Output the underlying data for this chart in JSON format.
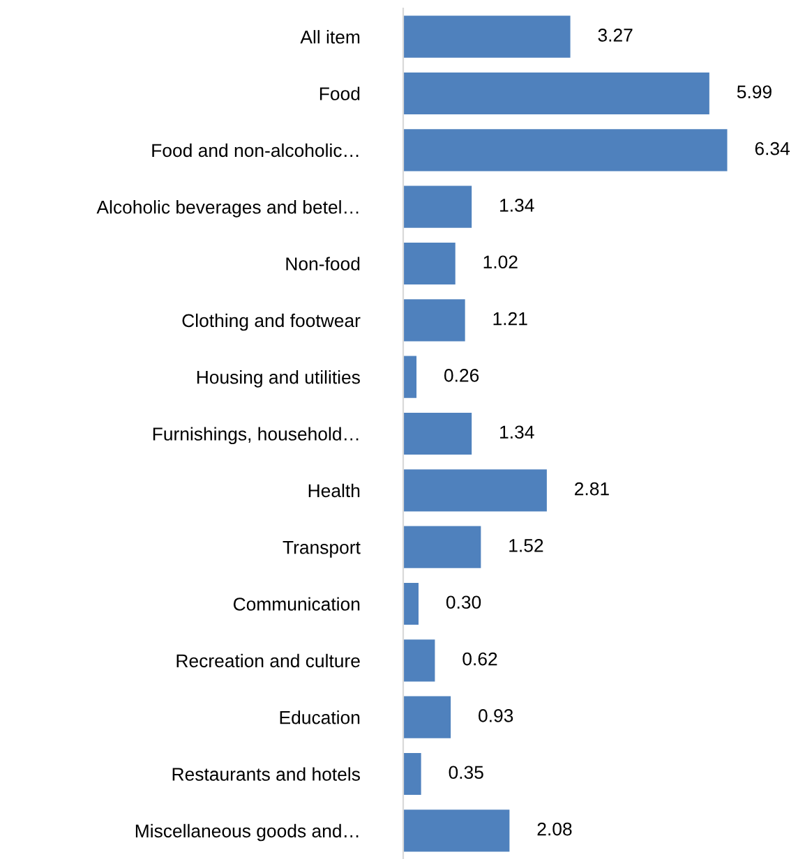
{
  "chart_data": {
    "type": "bar",
    "orientation": "horizontal",
    "categories": [
      "All item",
      "Food",
      "Food and non-alcoholic…",
      "Alcoholic beverages and betel…",
      "Non-food",
      "Clothing and footwear",
      "Housing and utilities",
      "Furnishings, household…",
      "Health",
      "Transport",
      "Communication",
      "Recreation and culture",
      "Education",
      "Restaurants and hotels",
      "Miscellaneous goods and…"
    ],
    "values": [
      3.27,
      5.99,
      6.34,
      1.34,
      1.02,
      1.21,
      0.26,
      1.34,
      2.81,
      1.52,
      0.3,
      0.62,
      0.93,
      0.35,
      2.08
    ],
    "value_labels": [
      "3.27",
      "5.99",
      "6.34",
      "1.34",
      "1.02",
      "1.21",
      "0.26",
      "1.34",
      "2.81",
      "1.52",
      "0.30",
      "0.62",
      "0.93",
      "0.35",
      "2.08"
    ],
    "color": "#4f81bd",
    "tick_labels": "y",
    "grid": false,
    "legend": false
  }
}
